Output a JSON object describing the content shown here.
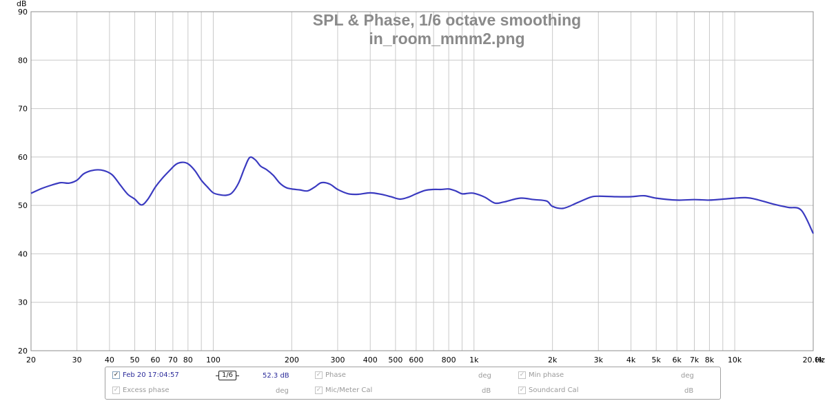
{
  "chart_data": {
    "type": "line",
    "title": "SPL & Phase, 1/6 octave smoothing",
    "subtitle": "in_room_mmm2.png",
    "ylabel": "dB",
    "xunit": "Hz",
    "xscale": "log",
    "xlim": [
      20,
      20000
    ],
    "ylim": [
      20,
      90
    ],
    "grid": true,
    "ytick_values": [
      20,
      30,
      40,
      50,
      60,
      70,
      80,
      90
    ],
    "ytick_labels": [
      "20",
      "30",
      "40",
      "50",
      "60",
      "70",
      "80",
      "90"
    ],
    "xtick_values": [
      20,
      30,
      40,
      50,
      60,
      70,
      80,
      100,
      200,
      300,
      400,
      500,
      600,
      800,
      1000,
      2000,
      3000,
      4000,
      5000,
      6000,
      7000,
      8000,
      10000,
      20000
    ],
    "xtick_labels": [
      "20",
      "30",
      "40",
      "50",
      "60",
      "70",
      "80",
      "100",
      "200",
      "300",
      "400",
      "500",
      "600",
      "800",
      "1k",
      "2k",
      "3k",
      "4k",
      "5k",
      "6k",
      "7k",
      "8k",
      "10k",
      "20.0k"
    ],
    "series": [
      {
        "color": "#3a3ac0",
        "x": [
          20,
          22,
          24,
          26,
          28,
          30,
          32,
          35,
          38,
          41,
          44,
          47,
          50,
          53,
          56,
          60,
          64,
          68,
          72,
          76,
          80,
          85,
          90,
          95,
          100,
          106,
          112,
          118,
          125,
          132,
          138,
          145,
          152,
          160,
          170,
          180,
          190,
          200,
          215,
          230,
          245,
          260,
          280,
          300,
          330,
          360,
          400,
          440,
          480,
          520,
          560,
          600,
          650,
          700,
          750,
          800,
          850,
          900,
          950,
          1000,
          1100,
          1200,
          1300,
          1500,
          1700,
          1900,
          2000,
          2200,
          2500,
          2800,
          3000,
          3500,
          4000,
          4500,
          5000,
          6000,
          7000,
          8000,
          9000,
          10000,
          11000,
          12000,
          14000,
          16000,
          18000,
          20000
        ],
        "y": [
          52.5,
          53.5,
          54.2,
          54.7,
          54.6,
          55.2,
          56.6,
          57.3,
          57.2,
          56.3,
          54.2,
          52.3,
          51.3,
          50.1,
          51.2,
          53.8,
          55.7,
          57.2,
          58.5,
          58.9,
          58.6,
          57.2,
          55.2,
          53.8,
          52.6,
          52.2,
          52.1,
          52.6,
          54.6,
          57.8,
          59.9,
          59.4,
          58.1,
          57.4,
          56.2,
          54.6,
          53.7,
          53.4,
          53.2,
          53.0,
          53.8,
          54.7,
          54.4,
          53.3,
          52.4,
          52.3,
          52.6,
          52.3,
          51.8,
          51.3,
          51.7,
          52.4,
          53.1,
          53.3,
          53.3,
          53.4,
          53.0,
          52.4,
          52.5,
          52.5,
          51.7,
          50.5,
          50.7,
          51.5,
          51.2,
          50.9,
          49.8,
          49.4,
          50.6,
          51.7,
          51.9,
          51.8,
          51.8,
          52.0,
          51.5,
          51.1,
          51.2,
          51.1,
          51.3,
          51.5,
          51.6,
          51.3,
          50.3,
          49.6,
          49.0,
          44.2
        ]
      }
    ]
  },
  "legend": {
    "row1": [
      {
        "label": "Feb 20 17:04:57",
        "checked": true,
        "enabled": true
      },
      {
        "label": "Phase",
        "checked": true,
        "enabled": false,
        "unit": "deg"
      },
      {
        "label": "Min phase",
        "checked": true,
        "enabled": false,
        "unit": "deg"
      }
    ],
    "row2": [
      {
        "label": "Excess phase",
        "checked": true,
        "enabled": false,
        "unit": "deg"
      },
      {
        "label": "Mic/Meter Cal",
        "checked": true,
        "enabled": false,
        "unit": "dB"
      },
      {
        "label": "Soundcard Cal",
        "checked": true,
        "enabled": false,
        "unit": "dB"
      }
    ],
    "smoothing_label": "1/6",
    "level_value": "52.3 dB",
    "checkmark": "✓"
  }
}
